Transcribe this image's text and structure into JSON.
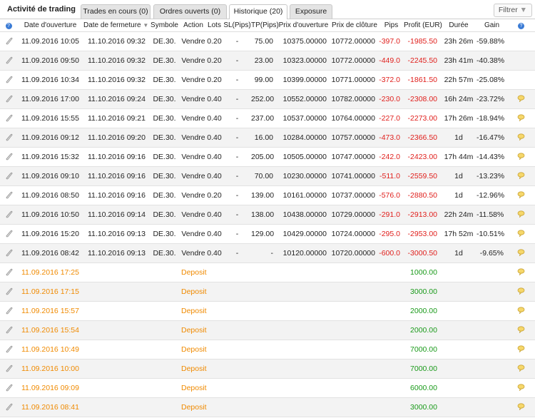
{
  "header": {
    "title": "Activité de trading",
    "tabs": [
      "Trades en cours (0)",
      "Ordres ouverts (0)",
      "Historique (20)",
      "Exposure"
    ],
    "active_tab": 2,
    "filter": "Filtrer"
  },
  "table": {
    "columns": [
      "Date d'ouverture",
      "Date de fermeture",
      "Symbole",
      "Action",
      "Lots",
      "SL(Pips)",
      "TP(Pips)",
      "Prix d'ouverture",
      "Prix de clôture",
      "Pips",
      "Profit (EUR)",
      "Durée",
      "Gain"
    ],
    "trades": [
      [
        "11.09.2016 10:05",
        "11.10.2016 09:32",
        "DE.30.",
        "Vendre",
        "0.20",
        "-",
        "75.00",
        "10375.00000",
        "10772.00000",
        "-397.0",
        "-1985.50",
        "23h 26m",
        "-59.88%"
      ],
      [
        "11.09.2016 09:50",
        "11.10.2016 09:32",
        "DE.30.",
        "Vendre",
        "0.20",
        "-",
        "23.00",
        "10323.00000",
        "10772.00000",
        "-449.0",
        "-2245.50",
        "23h 41m",
        "-40.38%"
      ],
      [
        "11.09.2016 10:34",
        "11.10.2016 09:32",
        "DE.30.",
        "Vendre",
        "0.20",
        "-",
        "99.00",
        "10399.00000",
        "10771.00000",
        "-372.0",
        "-1861.50",
        "22h 57m",
        "-25.08%"
      ],
      [
        "11.09.2016 17:00",
        "11.10.2016 09:24",
        "DE.30.",
        "Vendre",
        "0.40",
        "-",
        "252.00",
        "10552.00000",
        "10782.00000",
        "-230.0",
        "-2308.00",
        "16h 24m",
        "-23.72%"
      ],
      [
        "11.09.2016 15:55",
        "11.10.2016 09:21",
        "DE.30.",
        "Vendre",
        "0.40",
        "-",
        "237.00",
        "10537.00000",
        "10764.00000",
        "-227.0",
        "-2273.00",
        "17h 26m",
        "-18.94%"
      ],
      [
        "11.09.2016 09:12",
        "11.10.2016 09:20",
        "DE.30.",
        "Vendre",
        "0.40",
        "-",
        "16.00",
        "10284.00000",
        "10757.00000",
        "-473.0",
        "-2366.50",
        "1d",
        "-16.47%"
      ],
      [
        "11.09.2016 15:32",
        "11.10.2016 09:16",
        "DE.30.",
        "Vendre",
        "0.40",
        "-",
        "205.00",
        "10505.00000",
        "10747.00000",
        "-242.0",
        "-2423.00",
        "17h 44m",
        "-14.43%"
      ],
      [
        "11.09.2016 09:10",
        "11.10.2016 09:16",
        "DE.30.",
        "Vendre",
        "0.40",
        "-",
        "70.00",
        "10230.00000",
        "10741.00000",
        "-511.0",
        "-2559.50",
        "1d",
        "-13.23%"
      ],
      [
        "11.09.2016 08:50",
        "11.10.2016 09:16",
        "DE.30.",
        "Vendre",
        "0.20",
        "-",
        "139.00",
        "10161.00000",
        "10737.00000",
        "-576.0",
        "-2880.50",
        "1d",
        "-12.96%"
      ],
      [
        "11.09.2016 10:50",
        "11.10.2016 09:14",
        "DE.30.",
        "Vendre",
        "0.40",
        "-",
        "138.00",
        "10438.00000",
        "10729.00000",
        "-291.0",
        "-2913.00",
        "22h 24m",
        "-11.58%"
      ],
      [
        "11.09.2016 15:20",
        "11.10.2016 09:13",
        "DE.30.",
        "Vendre",
        "0.40",
        "-",
        "129.00",
        "10429.00000",
        "10724.00000",
        "-295.0",
        "-2953.00",
        "17h 52m",
        "-10.51%"
      ],
      [
        "11.09.2016 08:42",
        "11.10.2016 09:13",
        "DE.30.",
        "Vendre",
        "0.40",
        "-",
        "-",
        "10120.00000",
        "10720.00000",
        "-600.0",
        "-3000.50",
        "1d",
        "-9.65%"
      ]
    ],
    "trade_comments": [
      false,
      false,
      false,
      true,
      true,
      true,
      true,
      true,
      true,
      true,
      true,
      true
    ],
    "deposits": [
      {
        "date": "11.09.2016 17:25",
        "action": "Deposit",
        "profit": "1000.00"
      },
      {
        "date": "11.09.2016 17:15",
        "action": "Deposit",
        "profit": "3000.00"
      },
      {
        "date": "11.09.2016 15:57",
        "action": "Deposit",
        "profit": "2000.00"
      },
      {
        "date": "11.09.2016 15:54",
        "action": "Deposit",
        "profit": "2000.00"
      },
      {
        "date": "11.09.2016 10:49",
        "action": "Deposit",
        "profit": "7000.00"
      },
      {
        "date": "11.09.2016 10:00",
        "action": "Deposit",
        "profit": "7000.00"
      },
      {
        "date": "11.09.2016 09:09",
        "action": "Deposit",
        "profit": "6000.00"
      },
      {
        "date": "11.09.2016 08:41",
        "action": "Deposit",
        "profit": "3000.00"
      }
    ]
  }
}
